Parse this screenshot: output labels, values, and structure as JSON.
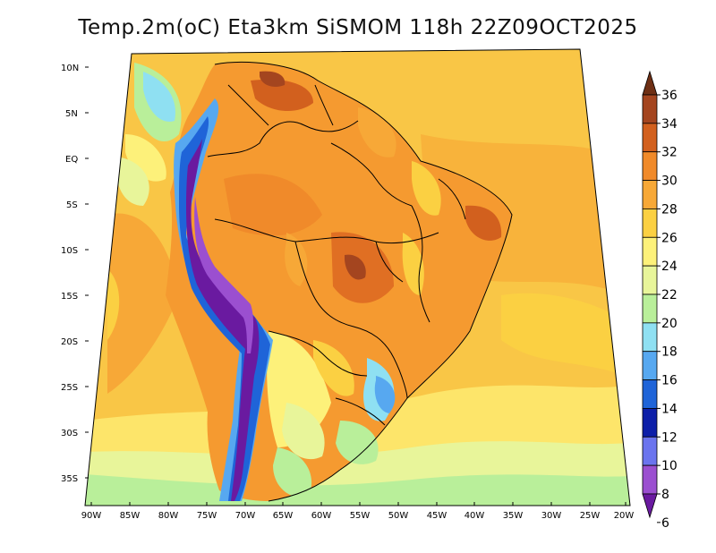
{
  "title": "Temp.2m(oC) Eta3km SiSMOM 118h 22Z09OCT2025",
  "lat_labels": [
    "10N",
    "5N",
    "EQ",
    "5S",
    "10S",
    "15S",
    "20S",
    "25S",
    "30S",
    "35S"
  ],
  "lon_labels": [
    "90W",
    "85W",
    "80W",
    "75W",
    "70W",
    "65W",
    "60W",
    "55W",
    "50W",
    "45W",
    "40W",
    "35W",
    "30W",
    "25W",
    "20W"
  ],
  "colorbar": {
    "labels": [
      "36",
      "34",
      "32",
      "30",
      "28",
      "26",
      "24",
      "22",
      "20",
      "18",
      "16",
      "14",
      "12",
      "10",
      "8",
      "6"
    ],
    "colors": [
      "#6e2f14",
      "#a4451f",
      "#d2601e",
      "#f08a2a",
      "#f7a837",
      "#fbd042",
      "#fdf17a",
      "#e8f59a",
      "#b9ef9a",
      "#8fe0f2",
      "#57a8f0",
      "#1f64d8",
      "#0d1fa8",
      "#6b74ee",
      "#9b4fd0",
      "#6a1aa0"
    ]
  },
  "map": {
    "variable": "2m temperature",
    "units": "oC",
    "region": "South America"
  }
}
